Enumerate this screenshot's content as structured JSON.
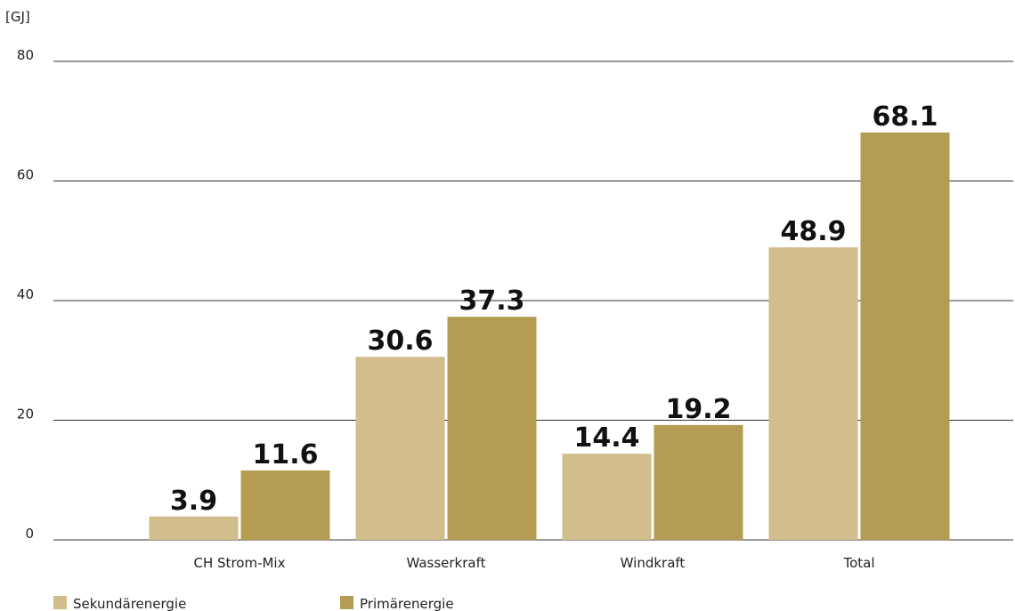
{
  "chart_data": {
    "type": "bar",
    "unit_label": "[GJ]",
    "categories": [
      "CH Strom-Mix",
      "Wasserkraft",
      "Windkraft",
      "Total"
    ],
    "series": [
      {
        "name": "Sekundärenergie",
        "color": "#d2bd8c",
        "values": [
          3.9,
          30.6,
          14.4,
          48.9
        ],
        "labels": [
          "3.9",
          "30.6",
          "14.4",
          "48.9"
        ]
      },
      {
        "name": "Primärenergie",
        "color": "#b59c53",
        "values": [
          11.6,
          37.3,
          19.2,
          68.1
        ],
        "labels": [
          "11.6",
          "37.3",
          "19.2",
          "68.1"
        ]
      }
    ],
    "yticks": [
      "0",
      "20",
      "40",
      "60",
      "80"
    ],
    "ylim": [
      0,
      80
    ],
    "grid": true,
    "legend_position": "bottom-left"
  }
}
